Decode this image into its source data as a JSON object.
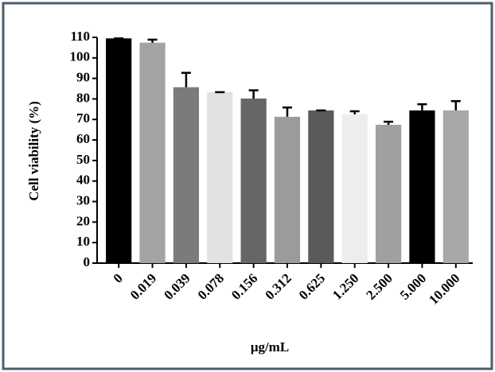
{
  "chart_data": {
    "type": "bar",
    "x_label": "μg/mL",
    "y_label": "Cell viability (%)",
    "categories": [
      "0",
      "0.019",
      "0.039",
      "0.078",
      "0.156",
      "0.312",
      "0.625",
      "1.250",
      "2.500",
      "5.000",
      "10.000"
    ],
    "values": [
      109.5,
      107.4,
      85.7,
      83.3,
      80.2,
      71.3,
      74.4,
      72.5,
      67.4,
      74.4,
      74.4
    ],
    "errors": [
      0,
      1.5,
      7,
      0,
      4,
      4.5,
      0,
      1.5,
      1.5,
      3,
      4.5
    ],
    "colors": [
      "#000000",
      "#a3a3a3",
      "#7b7b7b",
      "#e2e2e2",
      "#666666",
      "#9b9b9b",
      "#5a5a5a",
      "#ededed",
      "#a0a0a0",
      "#000000",
      "#a8a8a8"
    ],
    "ylim": [
      0,
      110
    ],
    "yticks": [
      0,
      10,
      20,
      30,
      40,
      50,
      60,
      70,
      80,
      90,
      100,
      110
    ]
  }
}
